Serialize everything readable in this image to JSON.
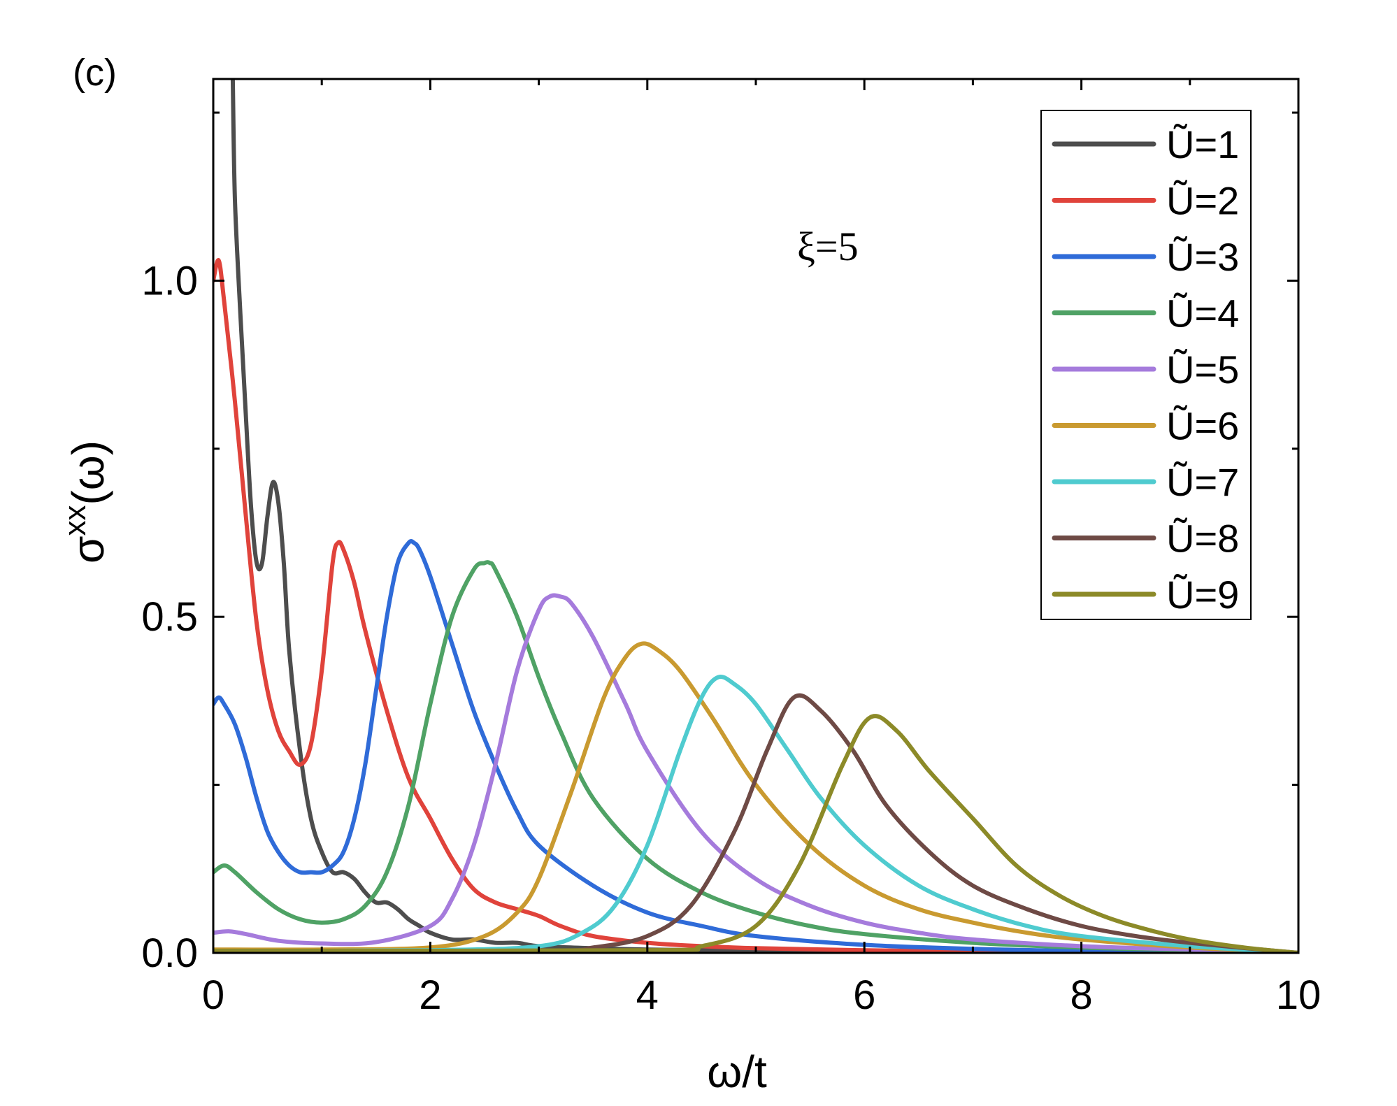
{
  "panel_label": "(c)",
  "annotation": "ξ=5",
  "chart_data": {
    "type": "line",
    "xlabel": "ω/t",
    "ylabel_base": "σ",
    "ylabel_sup": "xx",
    "ylabel_arg": "(ω)",
    "xlim": [
      0,
      10
    ],
    "ylim": [
      0,
      1.3
    ],
    "x_ticks": [
      0,
      2,
      4,
      6,
      8,
      10
    ],
    "x_tick_labels": [
      "0",
      "2",
      "4",
      "6",
      "8",
      "10"
    ],
    "y_ticks": [
      0,
      0.5,
      1.0
    ],
    "y_tick_labels": [
      "0.0",
      "0.5",
      "1.0"
    ],
    "legend_position": "top-right",
    "series": [
      {
        "name": "Ũ=1",
        "color": "#4d4d4d",
        "x": [
          0.18,
          0.2,
          0.25,
          0.3,
          0.35,
          0.4,
          0.45,
          0.5,
          0.55,
          0.6,
          0.65,
          0.7,
          0.8,
          0.9,
          1.0,
          1.1,
          1.2,
          1.3,
          1.4,
          1.5,
          1.6,
          1.7,
          1.8,
          1.9,
          2.0,
          2.2,
          2.4,
          2.6,
          2.8,
          3.0,
          3.5,
          4.0,
          5.0,
          6.0,
          8.0,
          10.0
        ],
        "y": [
          1.3,
          1.12,
          0.95,
          0.8,
          0.66,
          0.58,
          0.58,
          0.65,
          0.7,
          0.67,
          0.58,
          0.45,
          0.3,
          0.2,
          0.15,
          0.12,
          0.12,
          0.11,
          0.09,
          0.075,
          0.075,
          0.065,
          0.05,
          0.04,
          0.03,
          0.02,
          0.02,
          0.015,
          0.015,
          0.01,
          0.007,
          0.005,
          0.003,
          0.002,
          0.001,
          0.0
        ]
      },
      {
        "name": "Ũ=2",
        "color": "#e0433b",
        "x": [
          0,
          0.05,
          0.1,
          0.2,
          0.3,
          0.4,
          0.5,
          0.6,
          0.7,
          0.8,
          0.9,
          1.0,
          1.1,
          1.15,
          1.2,
          1.3,
          1.4,
          1.6,
          1.8,
          2.0,
          2.2,
          2.4,
          2.6,
          2.8,
          3.0,
          3.2,
          3.5,
          4.0,
          4.5,
          5.0,
          6.0,
          7.0,
          8.0,
          10.0
        ],
        "y": [
          1.0,
          1.03,
          0.97,
          0.82,
          0.65,
          0.49,
          0.39,
          0.33,
          0.3,
          0.28,
          0.31,
          0.42,
          0.58,
          0.61,
          0.6,
          0.55,
          0.48,
          0.36,
          0.26,
          0.2,
          0.14,
          0.095,
          0.075,
          0.065,
          0.055,
          0.04,
          0.025,
          0.015,
          0.01,
          0.007,
          0.004,
          0.002,
          0.001,
          0.0
        ]
      },
      {
        "name": "Ũ=3",
        "color": "#2f6bd8",
        "x": [
          0,
          0.05,
          0.1,
          0.2,
          0.3,
          0.4,
          0.5,
          0.6,
          0.7,
          0.8,
          0.9,
          1.0,
          1.1,
          1.2,
          1.3,
          1.4,
          1.5,
          1.6,
          1.7,
          1.8,
          1.85,
          1.9,
          2.0,
          2.2,
          2.4,
          2.6,
          2.8,
          3.0,
          3.5,
          4.0,
          4.5,
          5.0,
          6.0,
          7.0,
          8.0,
          10.0
        ],
        "y": [
          0.37,
          0.38,
          0.37,
          0.34,
          0.29,
          0.23,
          0.18,
          0.15,
          0.13,
          0.12,
          0.12,
          0.12,
          0.13,
          0.15,
          0.2,
          0.28,
          0.39,
          0.5,
          0.58,
          0.61,
          0.61,
          0.6,
          0.56,
          0.46,
          0.36,
          0.28,
          0.21,
          0.16,
          0.1,
          0.06,
          0.04,
          0.025,
          0.012,
          0.006,
          0.003,
          0.0
        ]
      },
      {
        "name": "Ũ=4",
        "color": "#4fa265",
        "x": [
          0,
          0.1,
          0.2,
          0.4,
          0.6,
          0.8,
          1.0,
          1.2,
          1.4,
          1.6,
          1.8,
          2.0,
          2.2,
          2.4,
          2.5,
          2.55,
          2.6,
          2.8,
          3.0,
          3.2,
          3.5,
          4.0,
          4.5,
          5.0,
          5.5,
          6.0,
          7.0,
          8.0,
          9.0,
          10.0
        ],
        "y": [
          0.12,
          0.13,
          0.12,
          0.09,
          0.065,
          0.05,
          0.045,
          0.05,
          0.07,
          0.12,
          0.22,
          0.37,
          0.5,
          0.57,
          0.58,
          0.58,
          0.57,
          0.5,
          0.41,
          0.33,
          0.23,
          0.14,
          0.09,
          0.06,
          0.04,
          0.028,
          0.015,
          0.008,
          0.004,
          0.0
        ]
      },
      {
        "name": "Ũ=5",
        "color": "#a57bdc",
        "x": [
          0,
          0.15,
          0.3,
          0.6,
          1.0,
          1.5,
          2.0,
          2.2,
          2.4,
          2.6,
          2.8,
          3.0,
          3.1,
          3.2,
          3.3,
          3.5,
          3.8,
          4.0,
          4.5,
          5.0,
          5.5,
          6.0,
          6.5,
          7.0,
          8.0,
          9.0,
          10.0
        ],
        "y": [
          0.03,
          0.032,
          0.028,
          0.018,
          0.014,
          0.016,
          0.04,
          0.08,
          0.16,
          0.28,
          0.42,
          0.51,
          0.53,
          0.53,
          0.52,
          0.47,
          0.37,
          0.3,
          0.18,
          0.11,
          0.07,
          0.045,
          0.03,
          0.02,
          0.01,
          0.005,
          0.0
        ]
      },
      {
        "name": "Ũ=6",
        "color": "#c99a30",
        "x": [
          0,
          1.0,
          2.0,
          2.5,
          2.8,
          3.0,
          3.3,
          3.6,
          3.8,
          3.95,
          4.1,
          4.3,
          4.6,
          5.0,
          5.5,
          6.0,
          6.5,
          7.0,
          7.5,
          8.0,
          9.0,
          10.0
        ],
        "y": [
          0.005,
          0.005,
          0.008,
          0.025,
          0.06,
          0.11,
          0.24,
          0.38,
          0.44,
          0.46,
          0.45,
          0.42,
          0.35,
          0.25,
          0.16,
          0.1,
          0.065,
          0.045,
          0.03,
          0.02,
          0.008,
          0.0
        ]
      },
      {
        "name": "Ũ=7",
        "color": "#4fcbcf",
        "x": [
          0,
          2.0,
          3.0,
          3.4,
          3.7,
          4.0,
          4.3,
          4.5,
          4.65,
          4.8,
          5.0,
          5.3,
          5.6,
          6.0,
          6.5,
          7.0,
          7.5,
          8.0,
          9.0,
          10.0
        ],
        "y": [
          0.003,
          0.004,
          0.01,
          0.03,
          0.07,
          0.16,
          0.3,
          0.38,
          0.41,
          0.4,
          0.37,
          0.3,
          0.23,
          0.16,
          0.1,
          0.065,
          0.04,
          0.025,
          0.01,
          0.0
        ]
      },
      {
        "name": "Ũ=8",
        "color": "#6e4a45",
        "x": [
          0,
          3.0,
          3.5,
          4.0,
          4.4,
          4.8,
          5.1,
          5.35,
          5.6,
          5.9,
          6.2,
          6.6,
          7.0,
          7.5,
          8.0,
          8.5,
          9.0,
          10.0
        ],
        "y": [
          0.003,
          0.003,
          0.008,
          0.025,
          0.07,
          0.18,
          0.3,
          0.38,
          0.36,
          0.3,
          0.22,
          0.15,
          0.1,
          0.065,
          0.04,
          0.025,
          0.015,
          0.0
        ]
      },
      {
        "name": "Ũ=9",
        "color": "#8c8a28",
        "x": [
          0,
          4.0,
          4.5,
          5.0,
          5.4,
          5.8,
          6.05,
          6.3,
          6.6,
          7.0,
          7.4,
          7.8,
          8.2,
          8.6,
          9.0,
          9.5,
          10.0
        ],
        "y": [
          0.003,
          0.004,
          0.01,
          0.04,
          0.13,
          0.28,
          0.35,
          0.33,
          0.27,
          0.2,
          0.13,
          0.085,
          0.055,
          0.035,
          0.02,
          0.008,
          0.0
        ]
      }
    ]
  }
}
